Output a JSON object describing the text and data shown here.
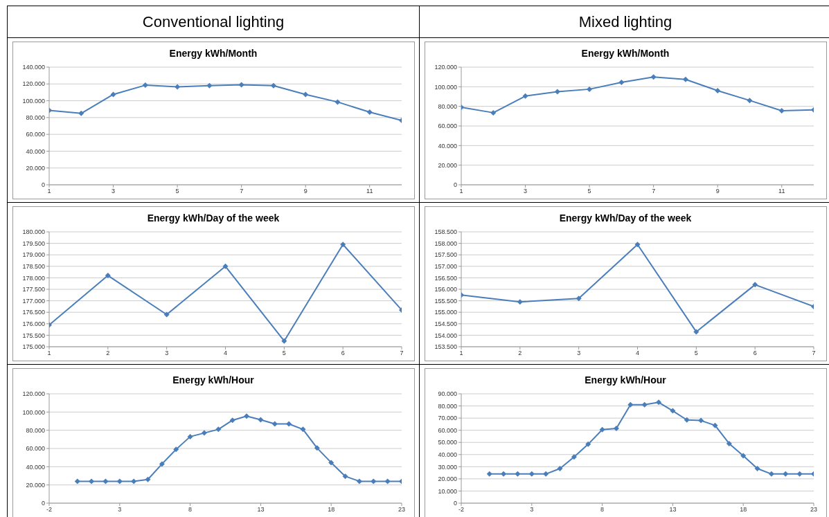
{
  "chart_data": [
    {
      "type": "other",
      "title": "Conventional lighting"
    },
    {
      "type": "other",
      "title": "Mixed lighting"
    },
    {
      "type": "line",
      "title": "Energy kWh/Month",
      "x": [
        1,
        2,
        3,
        4,
        5,
        6,
        7,
        8,
        9,
        10,
        11,
        12
      ],
      "values": [
        88500,
        85000,
        107500,
        118500,
        116500,
        118000,
        119000,
        118000,
        107500,
        98500,
        86500,
        76500
      ],
      "color": "#4a7ebb",
      "xlim": [
        1,
        12
      ],
      "xticks": [
        1,
        3,
        5,
        7,
        9,
        11
      ],
      "ylim": [
        0,
        140000
      ],
      "yticks": [
        {
          "value": 0,
          "label": "0"
        },
        {
          "value": 20000,
          "label": "20.000"
        },
        {
          "value": 40000,
          "label": "40.000"
        },
        {
          "value": 60000,
          "label": "60.000"
        },
        {
          "value": 80000,
          "label": "80.000"
        },
        {
          "value": 100000,
          "label": "100.000"
        },
        {
          "value": 120000,
          "label": "120.000"
        },
        {
          "value": 140000,
          "label": "140.000"
        }
      ],
      "grid": "y",
      "marker": "diamond",
      "line_style": "solid"
    },
    {
      "type": "line",
      "title": "Energy kWh/Month",
      "x": [
        1,
        2,
        3,
        4,
        5,
        6,
        7,
        8,
        9,
        10,
        11,
        12
      ],
      "values": [
        79000,
        73500,
        90500,
        95000,
        97500,
        104500,
        110000,
        107500,
        96000,
        86000,
        75500,
        76500
      ],
      "color": "#4a7ebb",
      "xlim": [
        1,
        12
      ],
      "xticks": [
        1,
        3,
        5,
        7,
        9,
        11
      ],
      "ylim": [
        0,
        120000
      ],
      "yticks": [
        {
          "value": 0,
          "label": "0"
        },
        {
          "value": 20000,
          "label": "20.000"
        },
        {
          "value": 40000,
          "label": "40.000"
        },
        {
          "value": 60000,
          "label": "60.000"
        },
        {
          "value": 80000,
          "label": "80.000"
        },
        {
          "value": 100000,
          "label": "100.000"
        },
        {
          "value": 120000,
          "label": "120.000"
        }
      ],
      "grid": "y",
      "marker": "diamond",
      "line_style": "solid"
    },
    {
      "type": "line",
      "title": "Energy kWh/Day of the week",
      "x": [
        1,
        2,
        3,
        4,
        5,
        6,
        7
      ],
      "values": [
        175950,
        178100,
        176400,
        178500,
        175250,
        179450,
        176600
      ],
      "color": "#4a7ebb",
      "xlim": [
        1,
        7
      ],
      "xticks": [
        1,
        2,
        3,
        4,
        5,
        6,
        7
      ],
      "ylim": [
        175000,
        180000
      ],
      "yticks": [
        {
          "value": 175000,
          "label": "175.000"
        },
        {
          "value": 175500,
          "label": "175.500"
        },
        {
          "value": 176000,
          "label": "176.000"
        },
        {
          "value": 176500,
          "label": "176.500"
        },
        {
          "value": 177000,
          "label": "177.000"
        },
        {
          "value": 177500,
          "label": "177.500"
        },
        {
          "value": 178000,
          "label": "178.000"
        },
        {
          "value": 178500,
          "label": "178.500"
        },
        {
          "value": 179000,
          "label": "179.000"
        },
        {
          "value": 179500,
          "label": "179.500"
        },
        {
          "value": 180000,
          "label": "180.000"
        }
      ],
      "grid": "y",
      "marker": "diamond",
      "line_style": "solid"
    },
    {
      "type": "line",
      "title": "Energy kWh/Day of the week",
      "x": [
        1,
        2,
        3,
        4,
        5,
        6,
        7
      ],
      "values": [
        155750,
        155450,
        155600,
        157950,
        154150,
        156200,
        155250
      ],
      "color": "#4a7ebb",
      "xlim": [
        1,
        7
      ],
      "xticks": [
        1,
        2,
        3,
        4,
        5,
        6,
        7
      ],
      "ylim": [
        153500,
        158500
      ],
      "yticks": [
        {
          "value": 153500,
          "label": "153.500"
        },
        {
          "value": 154000,
          "label": "154.000"
        },
        {
          "value": 154500,
          "label": "154.500"
        },
        {
          "value": 155000,
          "label": "155.000"
        },
        {
          "value": 155500,
          "label": "155.500"
        },
        {
          "value": 156000,
          "label": "156.000"
        },
        {
          "value": 156500,
          "label": "156.500"
        },
        {
          "value": 157000,
          "label": "157.000"
        },
        {
          "value": 157500,
          "label": "157.500"
        },
        {
          "value": 158000,
          "label": "158.000"
        },
        {
          "value": 158500,
          "label": "158.500"
        }
      ],
      "grid": "y",
      "marker": "diamond",
      "line_style": "solid"
    },
    {
      "type": "line",
      "title": "Energy kWh/Hour",
      "x": [
        0,
        1,
        2,
        3,
        4,
        5,
        6,
        7,
        8,
        9,
        10,
        11,
        12,
        13,
        14,
        15,
        16,
        17,
        18,
        19,
        20,
        21,
        22,
        23
      ],
      "values": [
        24000,
        24000,
        24000,
        24000,
        24000,
        26000,
        43000,
        59000,
        73000,
        77000,
        81000,
        91000,
        95500,
        91500,
        87000,
        87000,
        81000,
        60500,
        44500,
        29500,
        24000,
        24000,
        24000,
        24000
      ],
      "color": "#4a7ebb",
      "xlim": [
        -2,
        23
      ],
      "xticks": [
        -2,
        3,
        8,
        13,
        18,
        23
      ],
      "ylim": [
        0,
        120000
      ],
      "yticks": [
        {
          "value": 0,
          "label": "0"
        },
        {
          "value": 20000,
          "label": "20.000"
        },
        {
          "value": 40000,
          "label": "40.000"
        },
        {
          "value": 60000,
          "label": "60.000"
        },
        {
          "value": 80000,
          "label": "80.000"
        },
        {
          "value": 100000,
          "label": "100.000"
        },
        {
          "value": 120000,
          "label": "120.000"
        }
      ],
      "grid": "y",
      "marker": "diamond",
      "line_style": "solid"
    },
    {
      "type": "line",
      "title": "Energy kWh/Hour",
      "x": [
        0,
        1,
        2,
        3,
        4,
        5,
        6,
        7,
        8,
        9,
        10,
        11,
        12,
        13,
        14,
        15,
        16,
        17,
        18,
        19,
        20,
        21,
        22,
        23
      ],
      "values": [
        24000,
        24000,
        24000,
        24000,
        24000,
        28500,
        38000,
        48500,
        60500,
        61500,
        81000,
        81000,
        83000,
        76000,
        68500,
        68000,
        64000,
        49000,
        39000,
        28500,
        24000,
        24000,
        24000,
        24000
      ],
      "color": "#4a7ebb",
      "xlim": [
        -2,
        23
      ],
      "xticks": [
        -2,
        3,
        8,
        13,
        18,
        23
      ],
      "ylim": [
        0,
        90000
      ],
      "yticks": [
        {
          "value": 0,
          "label": "0"
        },
        {
          "value": 10000,
          "label": "10.000"
        },
        {
          "value": 20000,
          "label": "20.000"
        },
        {
          "value": 30000,
          "label": "30.000"
        },
        {
          "value": 40000,
          "label": "40.000"
        },
        {
          "value": 50000,
          "label": "50.000"
        },
        {
          "value": 60000,
          "label": "60.000"
        },
        {
          "value": 70000,
          "label": "70.000"
        },
        {
          "value": 80000,
          "label": "80.000"
        },
        {
          "value": 90000,
          "label": "90.000"
        }
      ],
      "grid": "y",
      "marker": "diamond",
      "line_style": "solid"
    }
  ]
}
